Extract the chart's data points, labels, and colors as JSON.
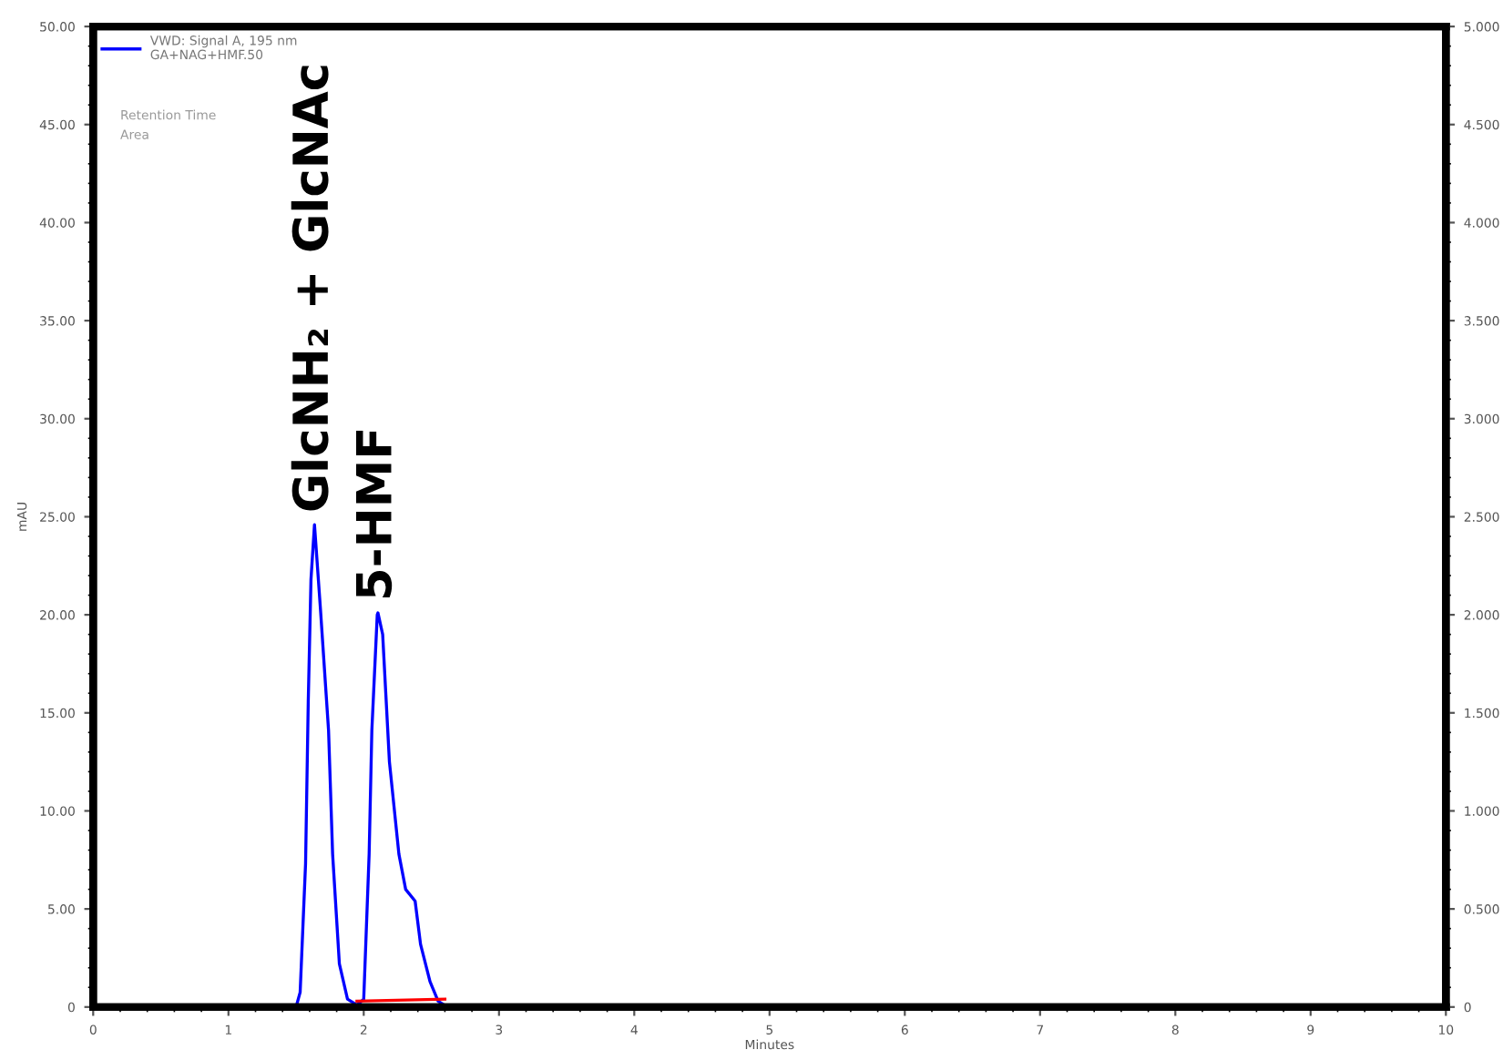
{
  "chart_data": {
    "type": "line",
    "xlabel": "Minutes",
    "ylabel": "mAU",
    "xlim": [
      0,
      10
    ],
    "xticks": [
      0,
      1,
      2,
      3,
      4,
      5,
      6,
      7,
      8,
      9,
      10
    ],
    "ylim": [
      0,
      50
    ],
    "yticks": [
      0,
      {
        "value": 5,
        "label": "5.00"
      },
      {
        "value": 10,
        "label": "10.00"
      },
      {
        "value": 15,
        "label": "15.00"
      },
      {
        "value": 20,
        "label": "20.00"
      },
      {
        "value": 25,
        "label": "25.00"
      },
      {
        "value": 30,
        "label": "30.00"
      },
      {
        "value": 35,
        "label": "35.00"
      },
      {
        "value": 40,
        "label": "40.00"
      },
      {
        "value": 45,
        "label": "45.00"
      },
      {
        "value": 50,
        "label": "50.00"
      }
    ],
    "y2lim": [
      0,
      5
    ],
    "y2ticks": [
      0,
      {
        "value": 0.5,
        "label": "0.500"
      },
      {
        "value": 1,
        "label": "1.000"
      },
      {
        "value": 1.5,
        "label": "1.500"
      },
      {
        "value": 2,
        "label": "2.000"
      },
      {
        "value": 2.5,
        "label": "2.500"
      },
      {
        "value": 3,
        "label": "3.000"
      },
      {
        "value": 3.5,
        "label": "3.500"
      },
      {
        "value": 4,
        "label": "4.000"
      },
      {
        "value": 4.5,
        "label": "4.500"
      },
      {
        "value": 5,
        "label": "5.000"
      }
    ],
    "series": [
      {
        "name": "VWD: Signal A, 195 nm\nGA+NAG+HMF.50",
        "color": "#0000ff",
        "x": [
          0,
          1.5,
          1.53,
          1.57,
          1.59,
          1.61,
          1.636,
          1.68,
          1.74,
          1.77,
          1.82,
          1.88,
          1.95,
          2.0,
          2.04,
          2.06,
          2.1,
          2.105,
          2.14,
          2.19,
          2.26,
          2.31,
          2.38,
          2.42,
          2.49,
          2.55,
          2.62,
          10
        ],
        "values": [
          0,
          0,
          0.75,
          7.3,
          15.6,
          21.8,
          24.6,
          20.3,
          14.1,
          7.8,
          2.2,
          0.4,
          0.1,
          0.4,
          7.8,
          14.1,
          20.0,
          20.1,
          19.0,
          12.5,
          7.8,
          6.0,
          5.4,
          3.2,
          1.3,
          0.3,
          0,
          0
        ]
      },
      {
        "color": "#ff0000",
        "x": [
          1.95,
          2.6
        ],
        "values": [
          0.3,
          0.4
        ]
      }
    ],
    "legend": "top left",
    "grid": false,
    "marker": "none",
    "line_style": "solid",
    "annotations": [
      "Retention Time",
      "Area",
      {
        "text": "GlcNH₂ + GlcNAc",
        "x": 1.636,
        "y": 24.6
      },
      {
        "text": "5-HMF",
        "x": 2.105,
        "y": 20.1
      }
    ]
  }
}
